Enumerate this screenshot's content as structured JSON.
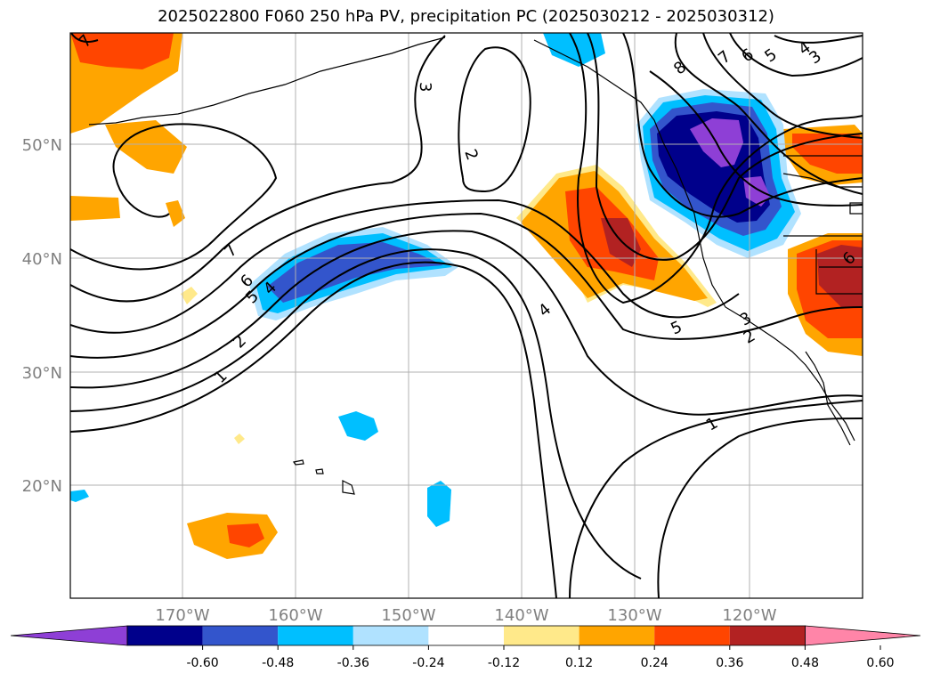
{
  "title": "2025022800 F060 250 hPa PV, precipitation PC (2025030212 - 2025030312)",
  "lat_labels": [
    "50°N",
    "40°N",
    "30°N",
    "20°N"
  ],
  "lon_labels": [
    "170°W",
    "160°W",
    "150°W",
    "140°W",
    "130°W",
    "120°W"
  ],
  "contour_labels": [
    "1",
    "2",
    "3",
    "4",
    "5",
    "6",
    "7",
    "8"
  ],
  "colorbar": {
    "ticks": [
      "-0.60",
      "-0.48",
      "-0.36",
      "-0.24",
      "-0.12",
      "0.12",
      "0.24",
      "0.36",
      "0.48",
      "0.60"
    ],
    "colors": [
      "#8e3fd6",
      "#00008b",
      "#3355cc",
      "#00bfff",
      "#b0e2ff",
      "#ffffff",
      "#ffe98a",
      "#ffa500",
      "#ff4500",
      "#b22222",
      "#ff85a8"
    ]
  }
}
